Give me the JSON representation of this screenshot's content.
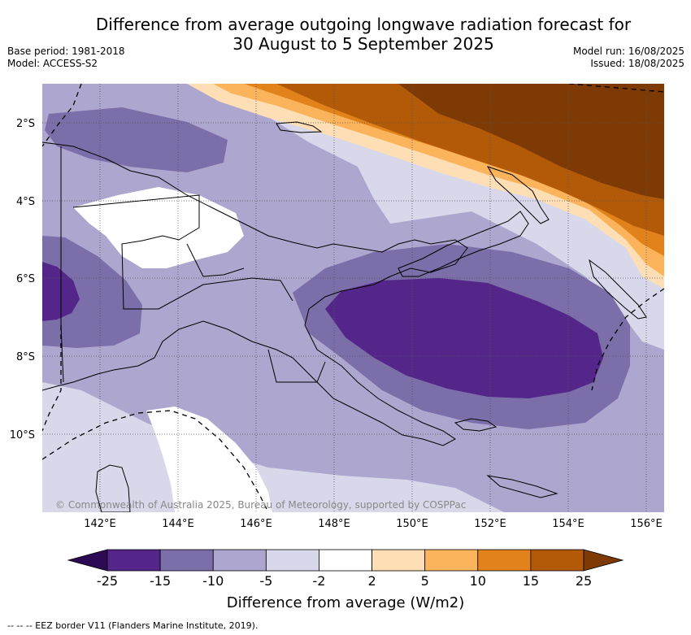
{
  "title": {
    "line1": "Difference from average outgoing longwave radiation forecast for",
    "line2": "30 August to 5 September 2025"
  },
  "meta_left": {
    "base_period": "Base period: 1981-2018",
    "model": "Model: ACCESS-S2"
  },
  "meta_right": {
    "model_run": "Model run: 16/08/2025",
    "issued": "Issued: 18/08/2025"
  },
  "map": {
    "lat_ticks": [
      "2°S",
      "4°S",
      "6°S",
      "8°S",
      "10°S"
    ],
    "lon_ticks": [
      "142°E",
      "144°E",
      "146°E",
      "148°E",
      "150°E",
      "152°E",
      "154°E",
      "156°E"
    ],
    "copyright": "© Commonwealth of Australia 2025, Bureau of Meteorology, supported by COSPPac"
  },
  "colorbar": {
    "tick_labels": [
      "-25",
      "-15",
      "-10",
      "-5",
      "-2",
      "2",
      "5",
      "10",
      "15",
      "25"
    ],
    "colors": [
      "#2d0b54",
      "#54268a",
      "#7b6ea9",
      "#ada6cf",
      "#d8d8ea",
      "#ffffff",
      "#fedeb4",
      "#fbb35c",
      "#e1831a",
      "#b25a08",
      "#7d3a05"
    ],
    "label": "Difference from average (W/m2)"
  },
  "footer": {
    "eez_note": "--  --  -- EEZ border V11 (Flanders Marine Institute, 2019)."
  }
}
